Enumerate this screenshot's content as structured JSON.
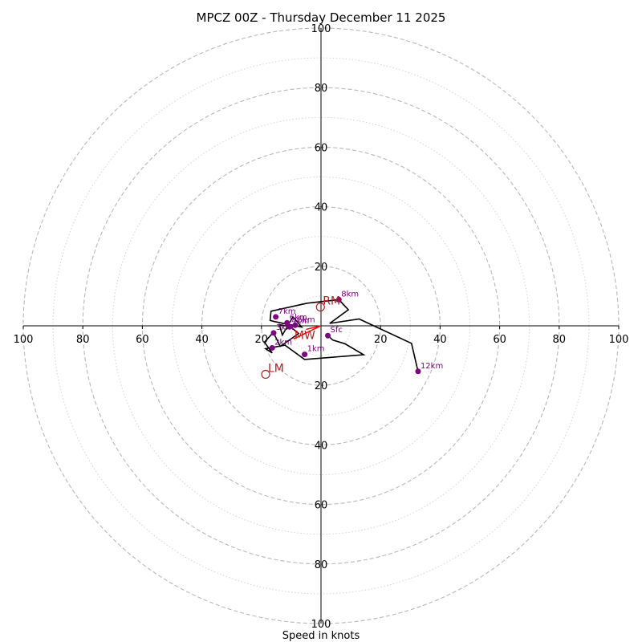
{
  "chart_data": {
    "type": "hodograph",
    "title": "MPCZ 00Z - Thursday December 11 2025",
    "xlabel": "Speed in knots",
    "max_speed": 100,
    "major_rings": [
      20,
      40,
      60,
      80,
      100
    ],
    "minor_rings": [
      10,
      30,
      50,
      70,
      90
    ],
    "x_tick_labels": [
      "100",
      "80",
      "60",
      "40",
      "20",
      "20",
      "40",
      "60",
      "80",
      "100"
    ],
    "x_tick_values": [
      -100,
      -80,
      -60,
      -40,
      -20,
      20,
      40,
      60,
      80,
      100
    ],
    "y_tick_labels": [
      "100",
      "80",
      "60",
      "40",
      "20",
      "20",
      "40",
      "60",
      "80",
      "100"
    ],
    "y_tick_values": [
      100,
      80,
      60,
      40,
      20,
      -20,
      -40,
      -60,
      -80,
      -100
    ],
    "trace": {
      "name": "wind profile",
      "color": "#000000",
      "points": [
        [
          2.3,
          -3.3
        ],
        [
          4.0,
          -4.8
        ],
        [
          8.0,
          -6.0
        ],
        [
          14.3,
          -9.7
        ],
        [
          -5.5,
          -11.3
        ],
        [
          -12.1,
          -6.5
        ],
        [
          -18.6,
          -7.7
        ],
        [
          -16.4,
          -9.1
        ],
        [
          -19.0,
          -5.5
        ],
        [
          -16.0,
          -2.2
        ],
        [
          -13.7,
          -6.9
        ],
        [
          -7.5,
          -2.6
        ],
        [
          -10.3,
          -0.3
        ],
        [
          -14.0,
          0.4
        ],
        [
          -13.0,
          -3.1
        ],
        [
          -9.4,
          3.0
        ],
        [
          -6.5,
          -0.4
        ],
        [
          -15.5,
          1.4
        ],
        [
          -17.1,
          1.8
        ],
        [
          -16.8,
          4.9
        ],
        [
          -4.6,
          7.6
        ],
        [
          6.0,
          8.8
        ],
        [
          9.2,
          5.4
        ],
        [
          2.9,
          0.8
        ],
        [
          12.8,
          2.3
        ],
        [
          30.4,
          -5.9
        ],
        [
          32.6,
          -15.3
        ]
      ]
    },
    "height_markers": [
      {
        "label": "Sfc",
        "u": 2.3,
        "v": -3.3
      },
      {
        "label": "1km",
        "u": -5.5,
        "v": -9.6
      },
      {
        "label": "2km",
        "u": -16.4,
        "v": -7.4
      },
      {
        "label": "3km",
        "u": -15.9,
        "v": -2.4
      },
      {
        "label": "4km",
        "u": -10.7,
        "v": -0.3
      },
      {
        "label": "5km",
        "u": -8.7,
        "v": 0.2
      },
      {
        "label": "6km",
        "u": -11.4,
        "v": 1.0
      },
      {
        "label": "7km",
        "u": -15.2,
        "v": 3.0
      },
      {
        "label": "8km",
        "u": 6.0,
        "v": 8.8
      },
      {
        "label": "12km",
        "u": 32.6,
        "v": -15.3
      }
    ],
    "motion_vectors": {
      "color": "#ff0000",
      "lines": [
        {
          "name": "mean wind line",
          "from": [
            0,
            0
          ],
          "to": [
            -9.2,
            -4.4
          ]
        },
        {
          "name": "storm motion line",
          "from": [
            0,
            0
          ],
          "to": [
            -5.0,
            -1.2
          ]
        }
      ]
    },
    "storm_motions": [
      {
        "label": "RM",
        "u": -0.2,
        "v": 6.3,
        "circle": true
      },
      {
        "label": "LM",
        "u": -18.6,
        "v": -16.3,
        "circle": true
      },
      {
        "label": "MW",
        "u": -9.2,
        "v": -4.4,
        "circle": false
      }
    ]
  }
}
